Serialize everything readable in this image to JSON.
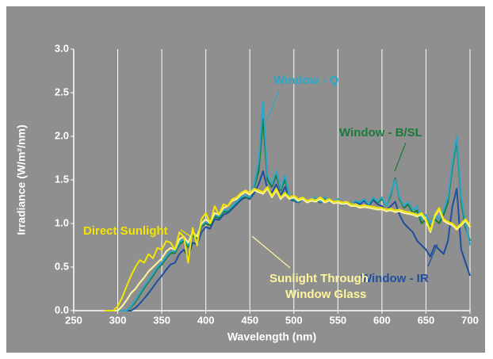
{
  "chart_data": {
    "type": "line",
    "xlabel": "Wavelength (nm)",
    "ylabel": "Irradiance (W/m²/nm)",
    "xlim": [
      250,
      700
    ],
    "ylim": [
      0,
      3
    ],
    "xticks": [
      250,
      300,
      350,
      400,
      450,
      500,
      550,
      600,
      650,
      700
    ],
    "yticks": [
      {
        "value": 0,
        "label": "0.0"
      },
      {
        "value": 0.5,
        "label": "0.5"
      },
      {
        "value": 1,
        "label": "1.0"
      },
      {
        "value": 1.5,
        "label": "1.5"
      },
      {
        "value": 2,
        "label": "2.0"
      },
      {
        "value": 2.5,
        "label": "2.5"
      },
      {
        "value": 3,
        "label": "3.0"
      }
    ],
    "grid": "x",
    "x": [
      285,
      290,
      295,
      300,
      305,
      310,
      315,
      320,
      325,
      330,
      335,
      340,
      345,
      350,
      355,
      360,
      365,
      370,
      375,
      380,
      385,
      390,
      395,
      400,
      405,
      410,
      415,
      420,
      425,
      430,
      435,
      440,
      445,
      450,
      455,
      460,
      465,
      470,
      475,
      480,
      485,
      490,
      495,
      500,
      505,
      510,
      515,
      520,
      525,
      530,
      535,
      540,
      545,
      550,
      555,
      560,
      565,
      570,
      575,
      580,
      585,
      590,
      595,
      600,
      605,
      610,
      615,
      620,
      625,
      630,
      635,
      640,
      645,
      650,
      655,
      660,
      665,
      670,
      675,
      680,
      685,
      690,
      695,
      700
    ],
    "series": [
      {
        "label": [
          "Window - IR"
        ],
        "color": "#1f4f9e",
        "values": [
          0,
          0,
          0,
          0,
          0,
          0,
          0,
          0.03,
          0.08,
          0.14,
          0.2,
          0.27,
          0.34,
          0.4,
          0.47,
          0.53,
          0.55,
          0.65,
          0.7,
          0.62,
          0.78,
          0.76,
          0.9,
          0.96,
          0.94,
          1.05,
          1.04,
          1.1,
          1.12,
          1.17,
          1.22,
          1.27,
          1.3,
          1.28,
          1.35,
          1.45,
          1.6,
          1.4,
          1.35,
          1.45,
          1.32,
          1.42,
          1.28,
          1.26,
          1.24,
          1.28,
          1.24,
          1.26,
          1.27,
          1.24,
          1.28,
          1.25,
          1.23,
          1.27,
          1.21,
          1.24,
          1.21,
          1.25,
          1.22,
          1.26,
          1.2,
          1.27,
          1.22,
          1.2,
          1.15,
          1.2,
          1.25,
          1.1,
          1.0,
          0.95,
          0.9,
          0.8,
          0.75,
          0.7,
          0.62,
          0.75,
          0.7,
          0.65,
          0.8,
          1.2,
          1.4,
          0.7,
          0.55,
          0.4
        ]
      },
      {
        "label": [
          "Window - B/SL"
        ],
        "color": "#1a7a3a",
        "values": [
          0,
          0,
          0,
          0,
          0,
          0,
          0.04,
          0.1,
          0.18,
          0.26,
          0.33,
          0.4,
          0.48,
          0.53,
          0.6,
          0.66,
          0.66,
          0.76,
          0.8,
          0.73,
          0.86,
          0.83,
          0.96,
          1.0,
          0.98,
          1.08,
          1.06,
          1.13,
          1.14,
          1.19,
          1.24,
          1.29,
          1.31,
          1.29,
          1.42,
          1.6,
          2.2,
          1.5,
          1.42,
          1.55,
          1.38,
          1.5,
          1.29,
          1.27,
          1.25,
          1.29,
          1.25,
          1.27,
          1.29,
          1.25,
          1.29,
          1.26,
          1.24,
          1.28,
          1.22,
          1.25,
          1.22,
          1.26,
          1.24,
          1.28,
          1.22,
          1.29,
          1.24,
          1.28,
          1.2,
          1.32,
          1.52,
          1.28,
          1.18,
          1.22,
          1.12,
          1.15,
          1.0,
          1.05,
          0.95,
          1.05,
          1.0,
          1.1,
          1.25,
          1.65,
          1.95,
          1.25,
          0.95,
          0.8
        ]
      },
      {
        "label": [
          "Window - Q"
        ],
        "color": "#2aa7c9",
        "values": [
          0,
          0,
          0,
          0,
          0,
          0,
          0.05,
          0.12,
          0.2,
          0.28,
          0.35,
          0.42,
          0.5,
          0.55,
          0.62,
          0.68,
          0.68,
          0.78,
          0.82,
          0.75,
          0.88,
          0.85,
          0.98,
          1.02,
          1.0,
          1.1,
          1.08,
          1.15,
          1.15,
          1.2,
          1.25,
          1.3,
          1.32,
          1.3,
          1.45,
          1.7,
          2.4,
          1.55,
          1.45,
          1.6,
          1.4,
          1.55,
          1.3,
          1.28,
          1.25,
          1.3,
          1.25,
          1.28,
          1.3,
          1.25,
          1.3,
          1.26,
          1.24,
          1.28,
          1.22,
          1.25,
          1.22,
          1.26,
          1.24,
          1.28,
          1.22,
          1.3,
          1.25,
          1.3,
          1.2,
          1.35,
          1.5,
          1.3,
          1.2,
          1.25,
          1.15,
          1.2,
          1.05,
          1.1,
          1.0,
          1.1,
          1.05,
          1.15,
          1.3,
          1.7,
          2.0,
          1.3,
          1.0,
          0.75
        ]
      },
      {
        "label": [
          "Sunlight Through",
          "Window Glass"
        ],
        "color": "#fff59d",
        "values": [
          0,
          0,
          0,
          0,
          0.05,
          0.12,
          0.2,
          0.25,
          0.32,
          0.38,
          0.45,
          0.5,
          0.55,
          0.6,
          0.68,
          0.72,
          0.7,
          0.82,
          0.85,
          0.78,
          0.9,
          0.85,
          1.0,
          1.05,
          1.0,
          1.12,
          1.1,
          1.18,
          1.2,
          1.26,
          1.28,
          1.33,
          1.36,
          1.33,
          1.38,
          1.36,
          1.34,
          1.4,
          1.3,
          1.38,
          1.28,
          1.33,
          1.28,
          1.3,
          1.26,
          1.28,
          1.24,
          1.26,
          1.25,
          1.28,
          1.24,
          1.26,
          1.23,
          1.24,
          1.22,
          1.23,
          1.2,
          1.2,
          1.18,
          1.19,
          1.18,
          1.17,
          1.16,
          1.16,
          1.14,
          1.15,
          1.13,
          1.14,
          1.12,
          1.11,
          1.1,
          1.08,
          1.1,
          1.03,
          0.9,
          1.08,
          1.16,
          1.03,
          1.0,
          0.98,
          0.93,
          0.98,
          1.03,
          0.96
        ]
      },
      {
        "label": [
          "Direct Sunlight"
        ],
        "color": "#f2e600",
        "values": [
          0,
          0,
          0,
          0.05,
          0.15,
          0.28,
          0.4,
          0.5,
          0.58,
          0.55,
          0.65,
          0.6,
          0.72,
          0.7,
          0.8,
          0.78,
          0.7,
          0.9,
          0.85,
          0.55,
          0.95,
          0.75,
          1.05,
          1.12,
          1.0,
          1.2,
          1.1,
          1.22,
          1.2,
          1.28,
          1.3,
          1.35,
          1.38,
          1.35,
          1.4,
          1.38,
          1.36,
          1.42,
          1.32,
          1.4,
          1.3,
          1.35,
          1.3,
          1.32,
          1.28,
          1.3,
          1.26,
          1.28,
          1.27,
          1.3,
          1.26,
          1.28,
          1.25,
          1.26,
          1.24,
          1.25,
          1.22,
          1.22,
          1.2,
          1.21,
          1.2,
          1.19,
          1.18,
          1.18,
          1.16,
          1.17,
          1.15,
          1.16,
          1.14,
          1.13,
          1.12,
          1.1,
          1.12,
          1.05,
          0.92,
          1.1,
          1.18,
          1.05,
          1.02,
          1.0,
          0.95,
          1.0,
          1.05,
          0.98
        ]
      }
    ]
  }
}
